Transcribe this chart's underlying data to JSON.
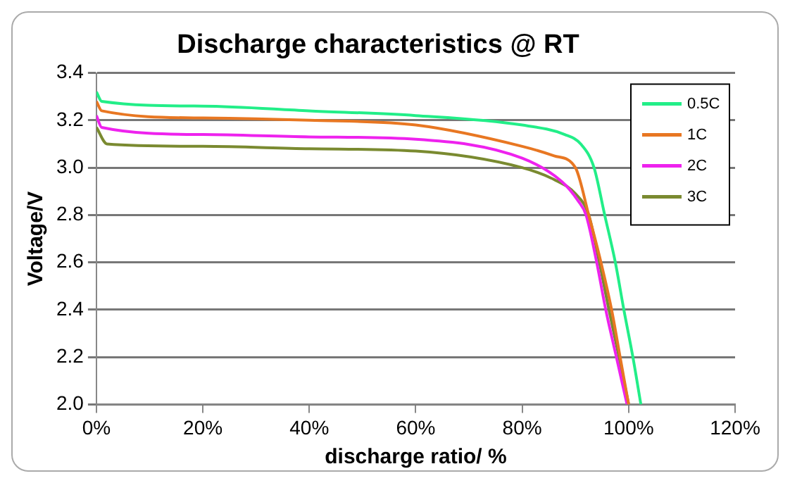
{
  "chart_data": {
    "type": "line",
    "title": "Discharge characteristics @ RT",
    "xlabel": "discharge ratio/ %",
    "ylabel": "Voltage/V",
    "xlim": [
      0,
      120
    ],
    "xticks": [
      {
        "value": 0,
        "label": "0%"
      },
      {
        "value": 20,
        "label": "20%"
      },
      {
        "value": 40,
        "label": "40%"
      },
      {
        "value": 60,
        "label": "60%"
      },
      {
        "value": 80,
        "label": "80%"
      },
      {
        "value": 100,
        "label": "100%"
      },
      {
        "value": 120,
        "label": "120%"
      }
    ],
    "ylim": [
      2.0,
      3.4
    ],
    "yticks": [
      {
        "value": 2.0,
        "label": "2.0"
      },
      {
        "value": 2.2,
        "label": "2.2"
      },
      {
        "value": 2.4,
        "label": "2.4"
      },
      {
        "value": 2.6,
        "label": "2.6"
      },
      {
        "value": 2.8,
        "label": "2.8"
      },
      {
        "value": 3.0,
        "label": "3.0"
      },
      {
        "value": 3.2,
        "label": "3.2"
      },
      {
        "value": 3.4,
        "label": "3.4"
      }
    ],
    "grid": "y",
    "legend": "top right",
    "marker": "none",
    "line_style": "solid",
    "series": [
      {
        "name": "0.5C",
        "color": "#22ee88",
        "x": [
          0,
          1,
          20,
          40,
          60,
          80,
          88,
          91,
          93.5,
          95.5,
          97.5,
          99.1,
          100.8,
          102.3
        ],
        "values": [
          3.32,
          3.28,
          3.26,
          3.24,
          3.22,
          3.18,
          3.14,
          3.1,
          3.0,
          2.8,
          2.6,
          2.4,
          2.2,
          2.0
        ]
      },
      {
        "name": "1C",
        "color": "#e87722",
        "x": [
          0,
          1,
          20,
          40,
          60,
          80,
          86,
          90,
          92.5,
          94.8,
          96.8,
          98.4,
          100
        ],
        "values": [
          3.28,
          3.24,
          3.21,
          3.2,
          3.18,
          3.09,
          3.05,
          3.0,
          2.8,
          2.6,
          2.4,
          2.2,
          2.0
        ]
      },
      {
        "name": "2C",
        "color": "#ee22ee",
        "x": [
          0,
          1,
          20,
          40,
          60,
          80,
          87.5,
          90.5,
          92,
          94,
          95.7,
          97.7,
          99.7
        ],
        "values": [
          3.22,
          3.17,
          3.14,
          3.13,
          3.12,
          3.04,
          2.94,
          2.86,
          2.8,
          2.6,
          2.4,
          2.2,
          2.0
        ]
      },
      {
        "name": "3C",
        "color": "#7a8a30",
        "x": [
          0,
          2,
          20,
          40,
          60,
          80,
          86,
          90,
          92.5,
          94.5,
          96.3,
          98.2,
          100
        ],
        "values": [
          3.17,
          3.1,
          3.09,
          3.08,
          3.07,
          3.0,
          2.95,
          2.89,
          2.8,
          2.6,
          2.4,
          2.2,
          2.0
        ]
      }
    ]
  }
}
